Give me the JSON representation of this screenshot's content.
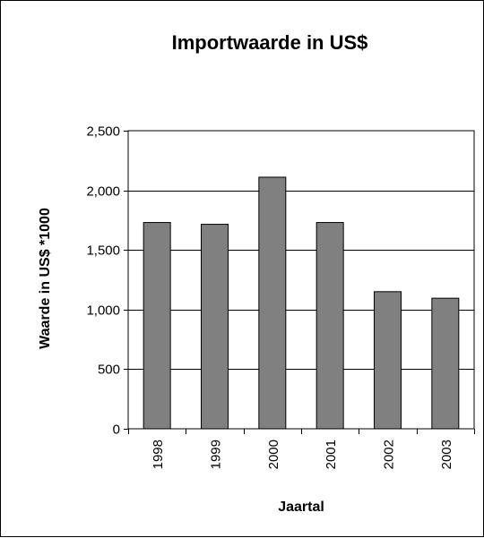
{
  "chart_data": {
    "type": "bar",
    "title": "Importwaarde in US$",
    "xlabel": "Jaartal",
    "ylabel": "Waarde in US$ *1000",
    "categories": [
      "1998",
      "1999",
      "2000",
      "2001",
      "2002",
      "2003"
    ],
    "values": [
      1730,
      1715,
      2110,
      1730,
      1150,
      1095
    ],
    "ylim": [
      0,
      2500
    ],
    "yticks": [
      0,
      500,
      1000,
      1500,
      2000,
      2500
    ],
    "ytick_labels": [
      "0",
      "500",
      "1,000",
      "1,500",
      "2,000",
      "2,500"
    ],
    "grid": true,
    "legend": "none",
    "bar_color": "#808080"
  }
}
